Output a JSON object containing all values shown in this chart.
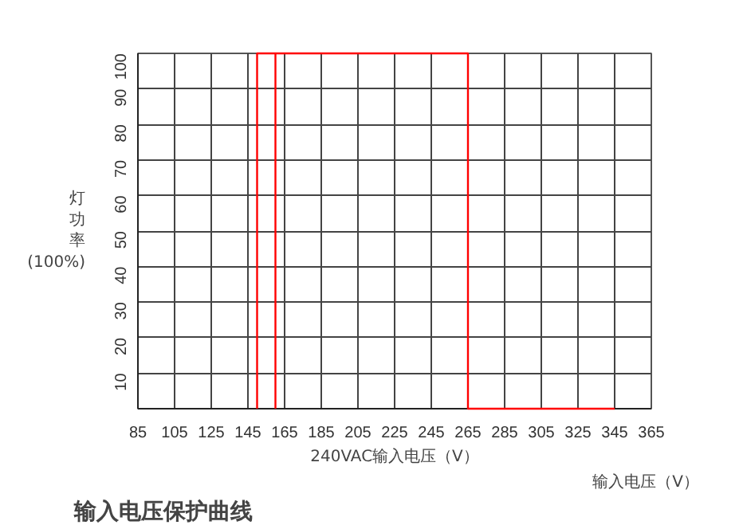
{
  "chart_data": {
    "type": "line",
    "title": "输入电压保护曲线",
    "xlabel": "240VAC输入电压（V）",
    "ylabel": "灯功率(100%)",
    "annotations": [
      "输入电压（V）"
    ],
    "series": [
      {
        "x": [
          150,
          150,
          265,
          265,
          345
        ],
        "values": [
          0,
          100,
          100,
          0,
          0
        ],
        "color": "#ff0000"
      },
      {
        "x": [
          160,
          160
        ],
        "values": [
          0,
          100
        ],
        "color": "#ff0000"
      }
    ],
    "xlim": [
      85,
      365
    ],
    "xticks": [
      85,
      105,
      125,
      145,
      165,
      185,
      205,
      225,
      245,
      265,
      285,
      305,
      325,
      345,
      365
    ],
    "ylim": [
      0,
      100
    ],
    "yticks": [
      {
        "value": 0,
        "label": null
      },
      10,
      20,
      30,
      40,
      50,
      60,
      70,
      80,
      90,
      100
    ],
    "grid": true,
    "marker": "none",
    "line_style": "solid"
  }
}
